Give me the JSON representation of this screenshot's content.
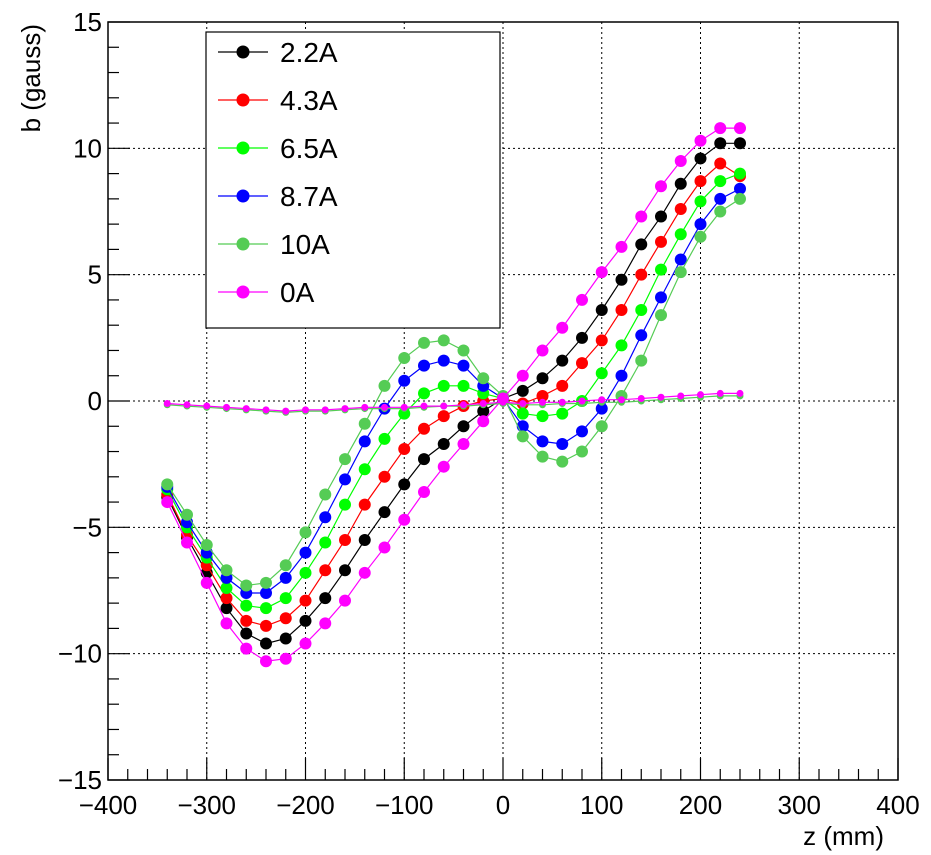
{
  "chart_data": {
    "type": "line",
    "title": "",
    "xlabel": "z (mm)",
    "ylabel": "b (gauss)",
    "xlim": [
      -400,
      400
    ],
    "ylim": [
      -15,
      15
    ],
    "x_ticks": [
      -400,
      -300,
      -200,
      -100,
      0,
      100,
      200,
      300,
      400
    ],
    "y_ticks": [
      -15,
      -10,
      -5,
      0,
      5,
      10,
      15
    ],
    "x_tick_labels": [
      "−400",
      "−300",
      "−200",
      "−100",
      "0",
      "100",
      "200",
      "300",
      "400"
    ],
    "y_tick_labels": [
      "−15",
      "−10",
      "−5",
      "0",
      "5",
      "10",
      "15"
    ],
    "grid": true,
    "legend_position": "top-left",
    "x": [
      -340,
      -320,
      -300,
      -280,
      -260,
      -240,
      -220,
      -200,
      -180,
      -160,
      -140,
      -120,
      -100,
      -80,
      -60,
      -40,
      -20,
      0,
      20,
      40,
      60,
      80,
      100,
      120,
      140,
      160,
      180,
      200,
      220,
      240
    ],
    "series": [
      {
        "name": "2.2A",
        "color": "#000000",
        "values": [
          -3.8,
          -5.4,
          -6.8,
          -8.2,
          -9.2,
          -9.6,
          -9.4,
          -8.7,
          -7.8,
          -6.7,
          -5.5,
          -4.4,
          -3.3,
          -2.3,
          -1.7,
          -1.0,
          -0.4,
          0.1,
          0.4,
          0.9,
          1.6,
          2.5,
          3.6,
          4.8,
          6.2,
          7.3,
          8.6,
          9.6,
          10.2,
          10.2
        ]
      },
      {
        "name": "4.3A",
        "color": "#ff0000",
        "values": [
          -3.7,
          -5.3,
          -6.5,
          -7.8,
          -8.7,
          -8.9,
          -8.6,
          -7.9,
          -6.7,
          -5.5,
          -4.1,
          -3.0,
          -1.9,
          -1.1,
          -0.6,
          -0.2,
          0.0,
          0.1,
          -0.1,
          0.2,
          0.6,
          1.5,
          2.4,
          3.6,
          5.0,
          6.3,
          7.6,
          8.7,
          9.4,
          8.9
        ]
      },
      {
        "name": "6.5A",
        "color": "#00ff00",
        "values": [
          -3.5,
          -5.0,
          -6.2,
          -7.4,
          -8.1,
          -8.2,
          -7.8,
          -6.8,
          -5.6,
          -4.1,
          -2.7,
          -1.5,
          -0.5,
          0.3,
          0.6,
          0.6,
          0.3,
          0.1,
          -0.5,
          -0.6,
          -0.5,
          0.0,
          1.1,
          2.2,
          3.6,
          5.2,
          6.6,
          7.9,
          8.7,
          9.0
        ]
      },
      {
        "name": "8.7A",
        "color": "#0000ff",
        "values": [
          -3.4,
          -4.8,
          -6.0,
          -7.0,
          -7.6,
          -7.6,
          -7.0,
          -6.0,
          -4.6,
          -3.1,
          -1.6,
          -0.3,
          0.8,
          1.4,
          1.6,
          1.4,
          0.6,
          0.1,
          -1.0,
          -1.6,
          -1.7,
          -1.2,
          -0.3,
          1.0,
          2.6,
          4.1,
          5.6,
          7.0,
          8.0,
          8.4
        ]
      },
      {
        "name": "10A",
        "color": "#55cc55",
        "values": [
          -3.3,
          -4.5,
          -5.7,
          -6.7,
          -7.3,
          -7.2,
          -6.5,
          -5.2,
          -3.7,
          -2.3,
          -0.9,
          0.6,
          1.7,
          2.3,
          2.4,
          2.0,
          0.9,
          0.2,
          -1.4,
          -2.2,
          -2.4,
          -2.0,
          -1.0,
          0.2,
          1.6,
          3.4,
          5.1,
          6.5,
          7.5,
          8.0
        ]
      },
      {
        "name": "0A",
        "color": "#ff00ff",
        "values": [
          -4.0,
          -5.6,
          -7.2,
          -8.8,
          -9.8,
          -10.3,
          -10.2,
          -9.6,
          -8.8,
          -7.9,
          -6.8,
          -5.8,
          -4.7,
          -3.6,
          -2.6,
          -1.7,
          -0.8,
          0.1,
          1.0,
          2.0,
          2.9,
          4.0,
          5.1,
          6.1,
          7.3,
          8.5,
          9.5,
          10.3,
          10.8,
          10.8
        ]
      },
      {
        "name": "",
        "color": "#55cc55",
        "values": [
          -0.15,
          -0.2,
          -0.25,
          -0.3,
          -0.35,
          -0.4,
          -0.45,
          -0.4,
          -0.4,
          -0.35,
          -0.3,
          -0.3,
          -0.3,
          -0.25,
          -0.2,
          -0.2,
          -0.15,
          -0.1,
          -0.15,
          -0.15,
          -0.1,
          -0.1,
          -0.05,
          -0.05,
          0.0,
          0.05,
          0.1,
          0.15,
          0.2,
          0.2
        ]
      },
      {
        "name": "",
        "color": "#ff00ff",
        "values": [
          -0.1,
          -0.15,
          -0.2,
          -0.25,
          -0.3,
          -0.35,
          -0.4,
          -0.35,
          -0.35,
          -0.3,
          -0.25,
          -0.25,
          -0.25,
          -0.2,
          -0.2,
          -0.15,
          -0.1,
          -0.05,
          -0.1,
          -0.05,
          -0.05,
          0.0,
          0.05,
          0.05,
          0.1,
          0.15,
          0.2,
          0.25,
          0.3,
          0.3
        ]
      }
    ]
  }
}
